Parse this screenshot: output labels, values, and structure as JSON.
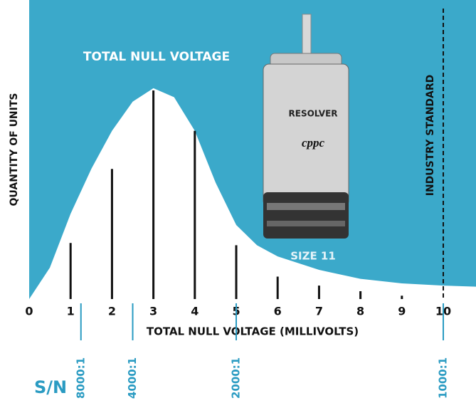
{
  "chart_data": {
    "type": "bar",
    "title": "TOTAL NULL VOLTAGE",
    "x_label": "TOTAL NULL VOLTAGE (MILLIVOLTS)",
    "y_label": "QUANTITY OF UNITS",
    "x": [
      1,
      2,
      3,
      4,
      5,
      6,
      7,
      8,
      9
    ],
    "values": [
      25,
      58,
      93,
      75,
      24,
      10,
      6,
      3.5,
      1.5
    ],
    "color": "#111111",
    "curve": {
      "x": [
        0,
        0.5,
        1,
        1.5,
        2,
        2.5,
        3,
        3.5,
        4,
        4.5,
        5,
        5.5,
        6,
        7,
        8,
        9,
        10,
        10.79
      ],
      "values": [
        0,
        14,
        38,
        58,
        75,
        88,
        94,
        90,
        75,
        52,
        33,
        24,
        19,
        13,
        9,
        7,
        6,
        5.5
      ],
      "color": "#ffffff"
    },
    "background": "#3ba9ca",
    "xlim": [
      0,
      10.79
    ],
    "ylim": [
      0,
      100
    ],
    "xticks": [
      0,
      1,
      2,
      3,
      4,
      5,
      6,
      7,
      8,
      9,
      10
    ],
    "reference_line": {
      "x": 10,
      "label": "INDUSTRY STANDARD"
    },
    "sn_title": "S/N",
    "sn_ticks": [
      {
        "value": 1.25,
        "label": "8000:1"
      },
      {
        "value": 2.5,
        "label": "4000:1"
      },
      {
        "value": 5,
        "label": "2000:1"
      },
      {
        "value": 10,
        "label": "1000:1"
      }
    ],
    "sn_color": "#2a9bc2",
    "product": {
      "label": "RESOLVER",
      "brand": "cppc",
      "size": "SIZE 11"
    }
  }
}
